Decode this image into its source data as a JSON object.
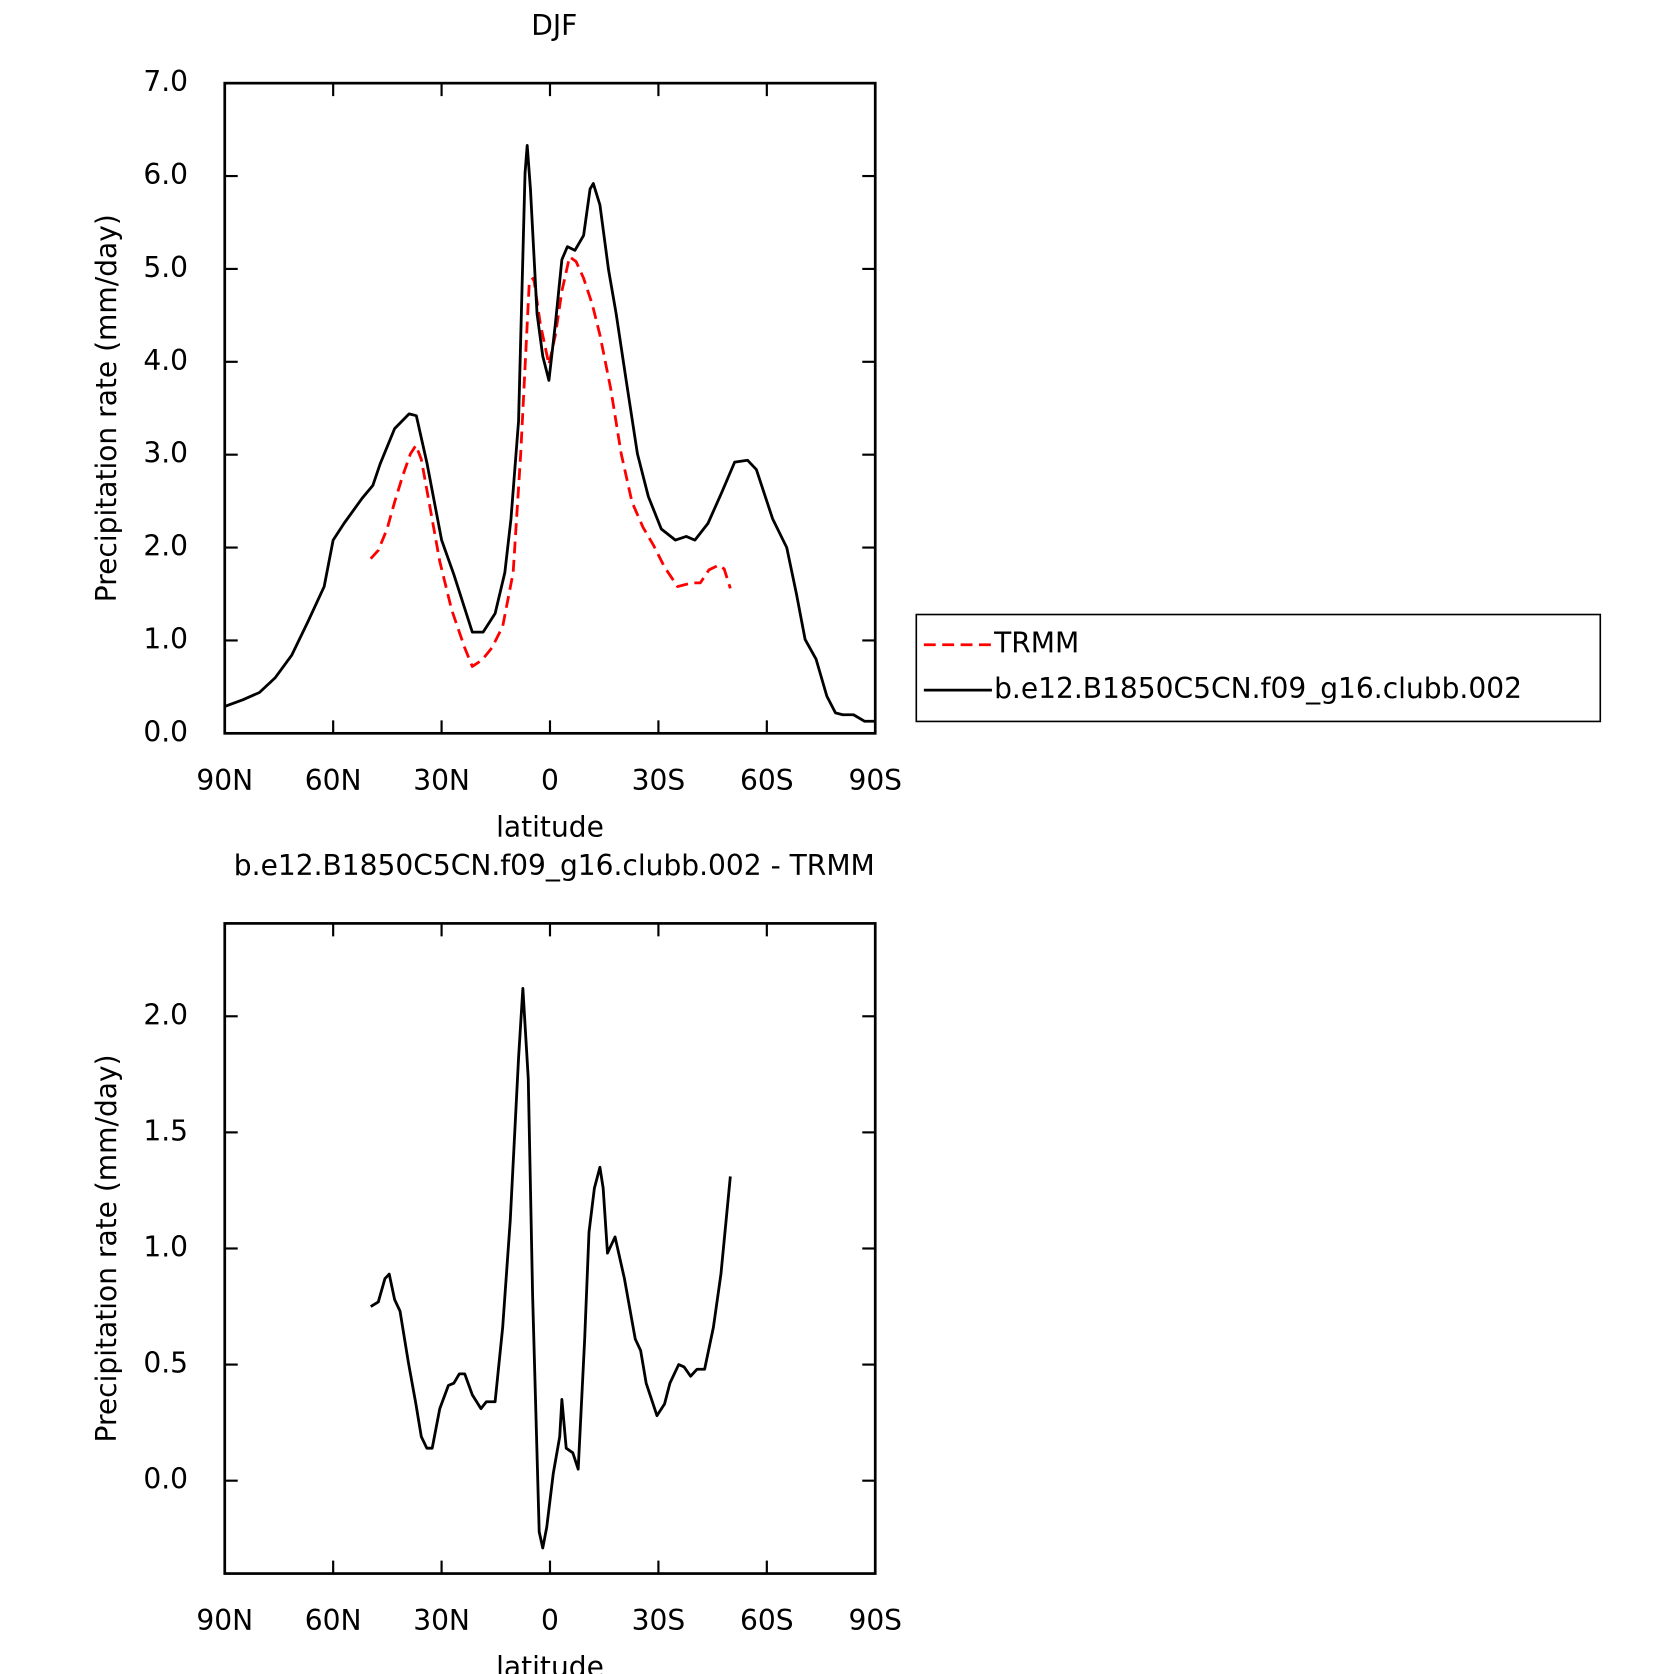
{
  "chart_data": [
    {
      "type": "line",
      "title": "DJF",
      "x_label": "latitude",
      "y_label": "Precipitation rate (mm/day)",
      "xlim": [
        90,
        -90
      ],
      "ylim": [
        0,
        7
      ],
      "xticks": [
        {
          "value": 90,
          "label": "90N"
        },
        {
          "value": 60,
          "label": "60N"
        },
        {
          "value": 30,
          "label": "30N"
        },
        0,
        {
          "value": -30,
          "label": "30S"
        },
        {
          "value": -60,
          "label": "60S"
        },
        {
          "value": -90,
          "label": "90S"
        }
      ],
      "yticks": [
        {
          "value": 0,
          "label": "0.0"
        },
        {
          "value": 1,
          "label": "1.0"
        },
        {
          "value": 2,
          "label": "2.0"
        },
        {
          "value": 3,
          "label": "3.0"
        },
        {
          "value": 4,
          "label": "4.0"
        },
        {
          "value": 5,
          "label": "5.0"
        },
        {
          "value": 6,
          "label": "6.0"
        },
        {
          "value": 7,
          "label": "7.0"
        }
      ],
      "legend": "right",
      "series": [
        {
          "name": "TRMM",
          "color": "#ff0000",
          "dash": true,
          "x": [
            49.6,
            47.5,
            45.1,
            43,
            40.7,
            38.6,
            37.1,
            35.6,
            33.2,
            30.5,
            27.2,
            23.6,
            21.5,
            18.8,
            16.1,
            13.1,
            10.2,
            8.1,
            5.7,
            4.5,
            2.7,
            0.3,
            -1.5,
            -3.3,
            -5.4,
            -7.2,
            -9.3,
            -11.7,
            -13.8,
            -16.8,
            -19.7,
            -22.7,
            -25.7,
            -28.7,
            -31.7,
            -35.3,
            -39.2,
            -41.6,
            -44,
            -46.7,
            -48.2,
            -49.9
          ],
          "values": [
            1.88,
            1.97,
            2.2,
            2.49,
            2.78,
            3.01,
            3.1,
            2.95,
            2.43,
            1.85,
            1.33,
            0.92,
            0.72,
            0.79,
            0.92,
            1.15,
            1.73,
            3.01,
            4.87,
            4.9,
            4.41,
            3.97,
            4.29,
            4.76,
            5.13,
            5.08,
            4.9,
            4.62,
            4.29,
            3.71,
            3.01,
            2.49,
            2.22,
            2.02,
            1.79,
            1.58,
            1.62,
            1.62,
            1.76,
            1.81,
            1.77,
            1.56
          ]
        },
        {
          "name": "b.e12.B1850C5CN.f09_g16.clubb.002",
          "color": "#000000",
          "dash": false,
          "x": [
            90,
            85,
            80.4,
            76,
            71.5,
            67,
            62.5,
            60,
            57,
            52,
            49,
            47,
            43,
            39,
            37,
            34,
            30,
            26.6,
            21.5,
            18.5,
            15.2,
            12.5,
            10.8,
            8.7,
            6.9,
            6.3,
            5.4,
            3.6,
            2,
            0.3,
            -1.5,
            -3.3,
            -4.8,
            -6.9,
            -9.3,
            -11.1,
            -12,
            -13.8,
            -16.2,
            -18.3,
            -21.2,
            -24.2,
            -27.2,
            -30.8,
            -34.7,
            -37.7,
            -40.1,
            -43.7,
            -47.6,
            -51.1,
            -54.7,
            -57.1,
            -61.6,
            -65.5,
            -68.2,
            -70.6,
            -73.6,
            -76.6,
            -79,
            -81,
            -84,
            -87,
            -90
          ],
          "values": [
            0.29,
            0.36,
            0.44,
            0.6,
            0.84,
            1.2,
            1.58,
            2.08,
            2.26,
            2.53,
            2.67,
            2.9,
            3.28,
            3.44,
            3.42,
            2.9,
            2.08,
            1.71,
            1.09,
            1.09,
            1.29,
            1.73,
            2.31,
            3.36,
            6.03,
            6.33,
            5.86,
            4.52,
            4.06,
            3.8,
            4.41,
            5.1,
            5.24,
            5.2,
            5.36,
            5.86,
            5.92,
            5.69,
            4.99,
            4.52,
            3.77,
            3.01,
            2.55,
            2.2,
            2.08,
            2.12,
            2.08,
            2.26,
            2.6,
            2.92,
            2.94,
            2.84,
            2.31,
            2.0,
            1.5,
            1.01,
            0.8,
            0.4,
            0.22,
            0.2,
            0.2,
            0.13,
            0.13
          ]
        }
      ]
    },
    {
      "type": "line",
      "title": "b.e12.B1850C5CN.f09_g16.clubb.002 - TRMM",
      "x_label": "latitude",
      "y_label": "Precipitation rate (mm/day)",
      "xlim": [
        90,
        -90
      ],
      "ylim": [
        -0.4,
        2.4
      ],
      "xticks": [
        {
          "value": 90,
          "label": "90N"
        },
        {
          "value": 60,
          "label": "60N"
        },
        {
          "value": 30,
          "label": "30N"
        },
        0,
        {
          "value": -30,
          "label": "30S"
        },
        {
          "value": -60,
          "label": "60S"
        },
        {
          "value": -90,
          "label": "90S"
        }
      ],
      "yticks": [
        {
          "value": 0,
          "label": "0.0"
        },
        0.5,
        {
          "value": 1,
          "label": "1.0"
        },
        1.5,
        {
          "value": 2,
          "label": "2.0"
        }
      ],
      "series": [
        {
          "color": "#000000",
          "dash": false,
          "x": [
            49.6,
            47.5,
            45.7,
            44.5,
            43,
            41.5,
            39.2,
            37.1,
            35.6,
            34.1,
            32.6,
            30.5,
            28.1,
            26.6,
            25.1,
            23.6,
            21.5,
            19.1,
            17.6,
            15.2,
            13.1,
            11,
            8.7,
            7.5,
            6,
            4.8,
            3,
            2,
            0.9,
            -0.9,
            -2.7,
            -3.3,
            -4.5,
            -6.3,
            -7.8,
            -9.6,
            -10.8,
            -12.3,
            -13.8,
            -14.7,
            -15.9,
            -18,
            -20.6,
            -23.6,
            -25.1,
            -26.6,
            -29.6,
            -31.7,
            -33.2,
            -35.6,
            -37.1,
            -38.9,
            -40.7,
            -42.8,
            -45.2,
            -47.3,
            -49.9
          ],
          "values": [
            0.75,
            0.77,
            0.87,
            0.89,
            0.78,
            0.73,
            0.51,
            0.33,
            0.19,
            0.14,
            0.14,
            0.31,
            0.41,
            0.42,
            0.46,
            0.46,
            0.37,
            0.31,
            0.34,
            0.34,
            0.66,
            1.12,
            1.82,
            2.12,
            1.73,
            0.8,
            -0.22,
            -0.29,
            -0.2,
            0.03,
            0.19,
            0.35,
            0.14,
            0.12,
            0.05,
            0.61,
            1.07,
            1.26,
            1.35,
            1.26,
            0.98,
            1.05,
            0.87,
            0.61,
            0.56,
            0.42,
            0.28,
            0.33,
            0.42,
            0.5,
            0.49,
            0.45,
            0.48,
            0.48,
            0.66,
            0.89,
            1.31
          ]
        }
      ]
    }
  ]
}
